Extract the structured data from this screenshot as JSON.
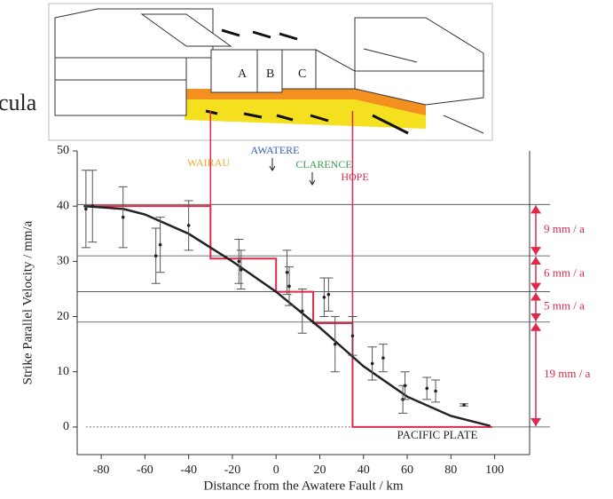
{
  "background_text": "cula",
  "diagram": {
    "labels": [
      "A",
      "B",
      "C"
    ]
  },
  "chart_data": {
    "type": "scatter",
    "xlabel": "Distance from the Awatere Fault /  km",
    "ylabel": "Strike Parallel Velocity  /  mm/a",
    "xlim": [
      -91,
      116
    ],
    "ylim": [
      -5,
      50
    ],
    "xticks": [
      -80,
      -60,
      -40,
      -20,
      0,
      20,
      40,
      60,
      80,
      100
    ],
    "yticks": [
      0,
      10,
      20,
      30,
      40,
      50
    ],
    "series": [
      {
        "color": "#222222",
        "x": [
          -87,
          -84,
          -70,
          -55,
          -53,
          -40,
          -17,
          -16,
          5,
          6,
          12,
          22,
          24,
          27,
          35,
          44,
          49,
          58,
          59,
          69,
          73,
          86
        ],
        "values": [
          39.5,
          40,
          38,
          31,
          33,
          36.5,
          30,
          28.5,
          28,
          25.5,
          21,
          23.5,
          24,
          15,
          16.5,
          11.5,
          12.5,
          5,
          7.5,
          7,
          6.5,
          4
        ],
        "errors": [
          7,
          6.5,
          5.5,
          5,
          5,
          4.5,
          4,
          3.5,
          4,
          3.5,
          4,
          3.5,
          3,
          5,
          3.5,
          3,
          2.5,
          2.5,
          2.5,
          2,
          2,
          0.2
        ]
      },
      {
        "color": "#e0284a",
        "x": [
          -88,
          -30,
          -30,
          0,
          0,
          17,
          17,
          35,
          35,
          99
        ],
        "values": [
          40,
          40,
          30.5,
          30.5,
          24.5,
          24.5,
          18.8,
          18.8,
          0,
          0
        ]
      },
      {
        "color": "#222222",
        "x": [
          -88,
          -70,
          -60,
          -40,
          -20,
          0,
          20,
          40,
          60,
          80,
          98
        ],
        "values": [
          40,
          39.5,
          38.5,
          35,
          30,
          24.5,
          18,
          11,
          5.5,
          2,
          0.2
        ]
      }
    ],
    "faults": [
      {
        "label": "WAIRAU",
        "color": "#f0a830"
      },
      {
        "label": "AWATERE",
        "color": "#3060c0"
      },
      {
        "label": "CLARENCE",
        "color": "#3a9a50"
      },
      {
        "label": "HOPE",
        "color": "#e0284a"
      }
    ],
    "levels": [
      40.3,
      31,
      24.5,
      19,
      0
    ],
    "rates": [
      "9 mm / a",
      "6 mm / a",
      "5 mm / a",
      "19 mm / a"
    ],
    "annotation": "PACIFIC PLATE"
  }
}
